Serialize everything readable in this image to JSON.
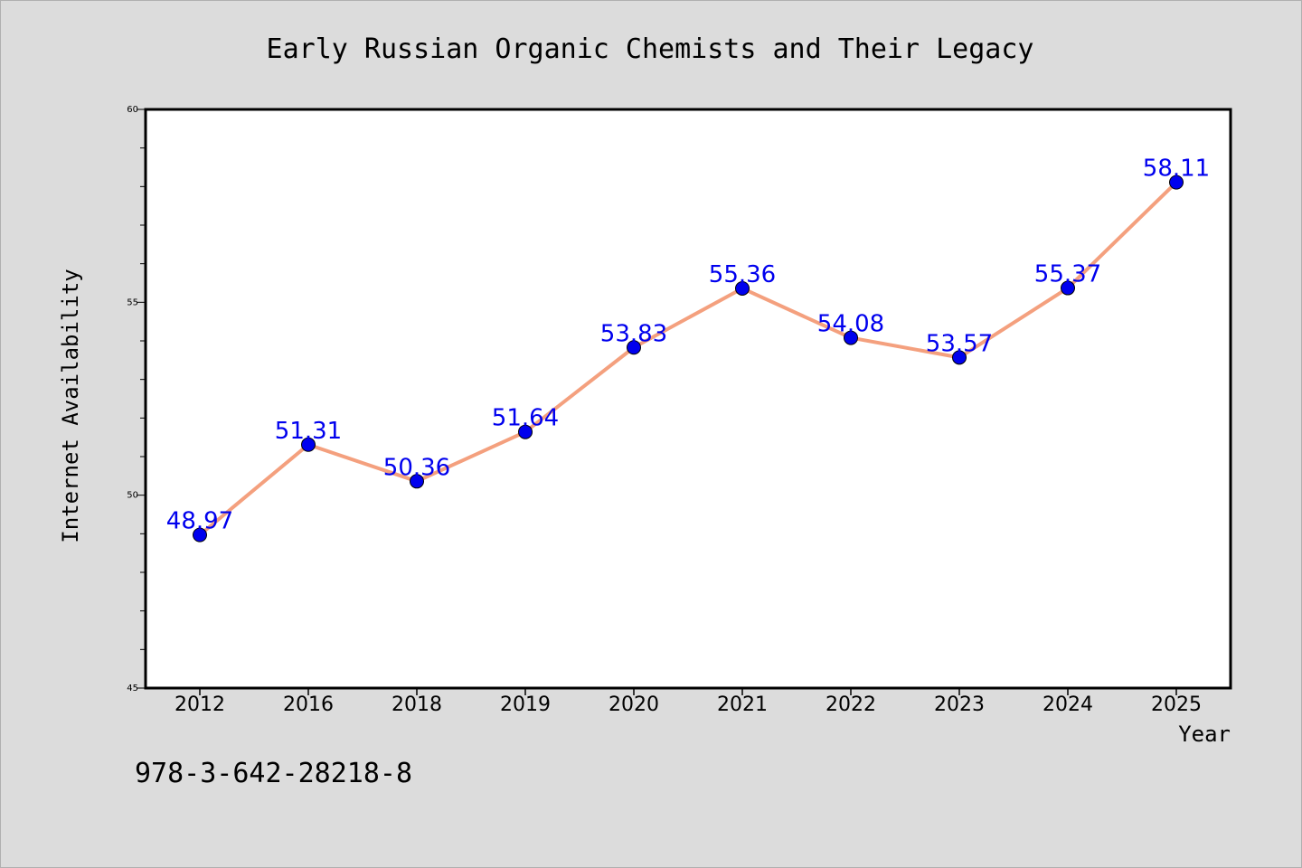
{
  "chart_data": {
    "type": "line",
    "title": "Early Russian Organic Chemists and Their Legacy",
    "xlabel": "Year",
    "ylabel": "Internet Availability",
    "categories": [
      "2012",
      "2016",
      "2018",
      "2019",
      "2020",
      "2021",
      "2022",
      "2023",
      "2024",
      "2025"
    ],
    "series": [
      {
        "values": [
          48.97,
          51.31,
          50.36,
          51.64,
          53.83,
          55.36,
          54.08,
          53.57,
          55.37,
          58.11
        ],
        "data_labels": [
          "48.97",
          "51.31",
          "50.36",
          "51.64",
          "53.83",
          "55.36",
          "54.08",
          "53.57",
          "55.37",
          "58.11"
        ],
        "line_color": "#f4a07e",
        "marker_color": "#0000ee",
        "label_color": "#0000ee"
      }
    ],
    "ylim": [
      45,
      60
    ],
    "yticks": [
      45,
      50,
      55,
      60
    ],
    "ytick_labels": [
      "45",
      "50",
      "55",
      "60"
    ],
    "grid": false,
    "legend": "none"
  },
  "footer": {
    "isbn": "978-3-642-28218-8"
  },
  "colors": {
    "background": "#dcdcdc",
    "plot_background": "#ffffff",
    "axes": "#000000"
  }
}
